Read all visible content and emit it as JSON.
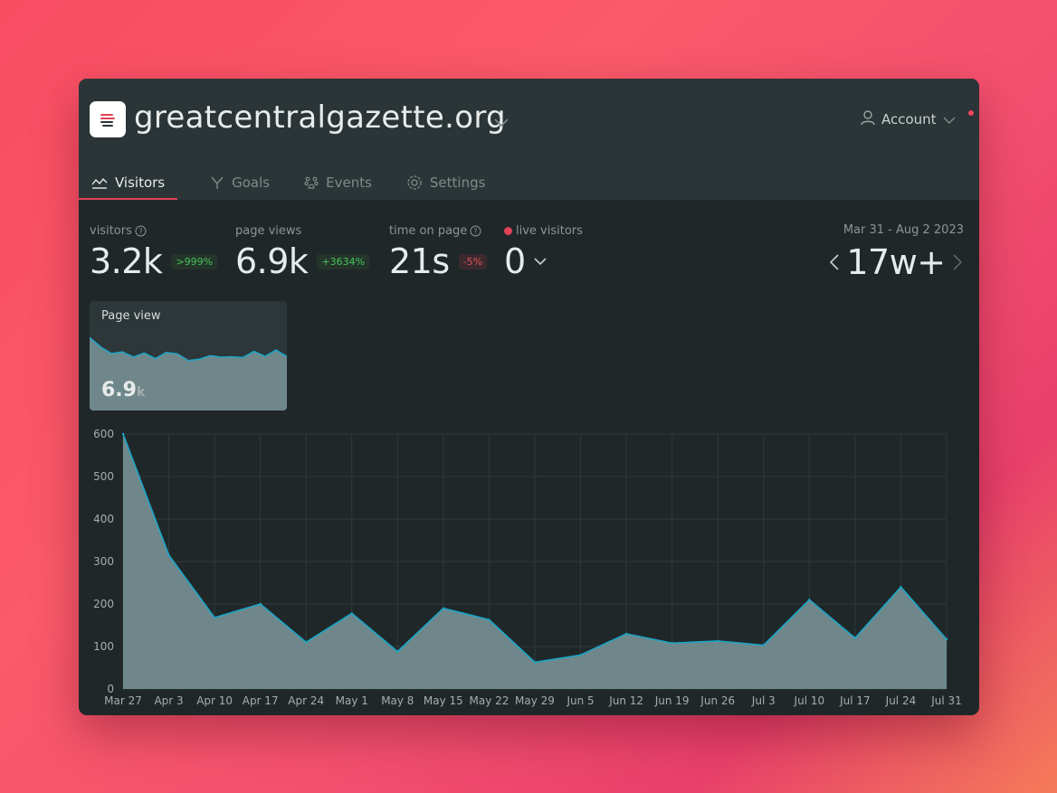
{
  "site": {
    "title": "greatcentralgazette.org",
    "logo_icon": "stacked-lines-logo-icon"
  },
  "account": {
    "label": "Account",
    "icon": "user-icon"
  },
  "tabs": [
    {
      "label": "Visitors",
      "icon": "chart-line-icon",
      "active": true
    },
    {
      "label": "Goals",
      "icon": "goal-icon",
      "active": false
    },
    {
      "label": "Events",
      "icon": "paw-icon",
      "active": false
    },
    {
      "label": "Settings",
      "icon": "gear-icon",
      "active": false
    }
  ],
  "stats": {
    "visitors": {
      "label": "visitors",
      "value": "3.2k",
      "change": ">999%"
    },
    "page_views": {
      "label": "page views",
      "value": "6.9k",
      "change": "+3634%"
    },
    "time_on_page": {
      "label": "time on page",
      "value": "21s",
      "change": "-5%"
    },
    "live_visitors": {
      "label": "live visitors",
      "value": "0"
    }
  },
  "range": {
    "dates": "Mar 31 - Aug 2 2023",
    "value": "17w+"
  },
  "mini_card": {
    "title": "Page view",
    "value": "6.9",
    "unit": "k"
  },
  "colors": {
    "accent": "#e0435a",
    "line": "#1aa6c8",
    "area": "#6f878a",
    "positive": "#45c35a",
    "negative": "#e5505e"
  },
  "chart_data": {
    "type": "area",
    "categories": [
      "Mar 27",
      "Apr 3",
      "Apr 10",
      "Apr 17",
      "Apr 24",
      "May 1",
      "May 8",
      "May 15",
      "May 22",
      "May 29",
      "Jun 5",
      "Jun 12",
      "Jun 19",
      "Jun 26",
      "Jul 3",
      "Jul 10",
      "Jul 17",
      "Jul 24",
      "Jul 31"
    ],
    "values": [
      600,
      315,
      168,
      200,
      110,
      178,
      88,
      190,
      163,
      63,
      80,
      130,
      108,
      113,
      103,
      210,
      120,
      240,
      117
    ],
    "yticks": [
      0,
      100,
      200,
      300,
      400,
      500,
      600
    ],
    "ylim": [
      0,
      600
    ],
    "grid": true
  }
}
